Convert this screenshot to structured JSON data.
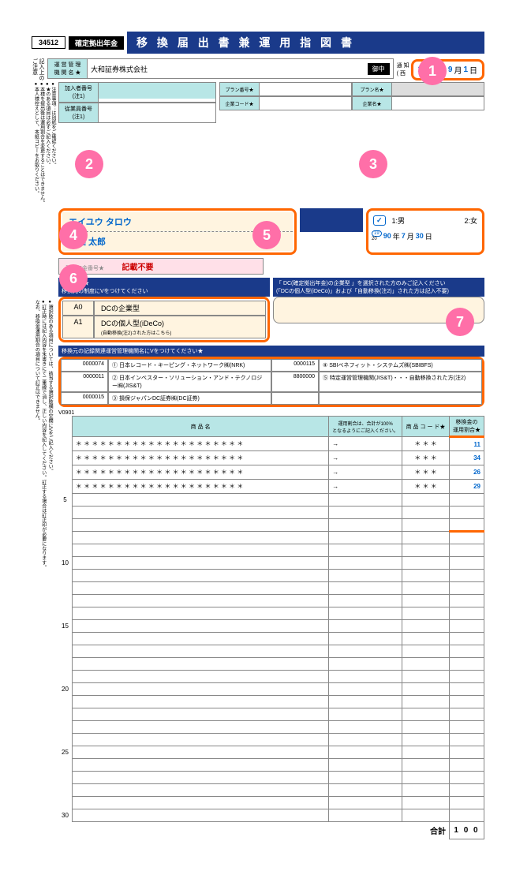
{
  "header": {
    "code": "34512",
    "type": "確定拠出年金",
    "title": "移 換 届 出 書 兼 運 用 指 図 書"
  },
  "date": {
    "label_left": "通 知",
    "label_right": "( 西",
    "era": "20",
    "year": "21",
    "year_unit": "年",
    "month": "9",
    "month_unit": "月",
    "day": "1",
    "day_unit": "日"
  },
  "notice": {
    "label": "記入上の\nご注意",
    "bullets": "●注意事項：は別紙をご確認ください。\n●★のある項目は必ずご記入ください。\n●本様を提出後は運用割合を変更することはできません。\n●本人様控えとして、本紙コピーをお取りください。"
  },
  "company": {
    "label": "運 営 管 理\n機 関 名 ★",
    "name": "大和証券株式会社",
    "suffix": "御中"
  },
  "member": {
    "label1": "加入者番号\n(注1)",
    "label2": "従業員番号\n(注1)"
  },
  "plan": {
    "label1": "プラン番号★",
    "label2": "プラン名★",
    "label3": "企業コード★",
    "label4": "企業名★"
  },
  "name": {
    "kana": "エイユウ タロウ",
    "kanji": "英雄 太郎"
  },
  "pension": {
    "label": "基礎年金番号★",
    "note": "記載不要"
  },
  "gender": {
    "label1": "1:男",
    "label2": "2:女",
    "check": "✓"
  },
  "birth": {
    "era1": "19",
    "era2": "20",
    "year": "90",
    "year_unit": "年",
    "month": "7",
    "month_unit": "月",
    "day": "30",
    "day_unit": "日"
  },
  "reason": {
    "header": "異動事由★\n移換元の制度にVをつけてください",
    "header2": "「 DC(確定拠出年金)の企業型 」を選択された方のみご記入ください\n(「DCの個人型(iDeCo)」および「自動移換(注2)」された方は記入不要)",
    "code1": "A0",
    "text1": "DCの企業型",
    "code2": "A1",
    "text2": "DCの個人型(iDeCo)",
    "text2_sub": "(自動移換(注2)された方はこちら)"
  },
  "records": {
    "header": "移換元の記録関連運営管理機関名にVをつけてください★",
    "items": [
      {
        "num": "0000074",
        "text": "① 日本レコード・キーピング・ネットワーク㈱(NRK)"
      },
      {
        "num": "0000011",
        "text": "② 日本インベスター・ソリューション・アンド・テクノロジー㈱(JIS&T)"
      },
      {
        "num": "0000015",
        "text": "③ 損保ジャパンDC証券㈱(DC証券)"
      },
      {
        "num": "0000115",
        "text": "④ SBIベネフィット・システムズ㈱(SBIBFS)"
      },
      {
        "num": "8800000",
        "text": "⑤ 特定運営管理機関(JIS&T)・・・自動移換された方(注2)"
      }
    ]
  },
  "products": {
    "col1": "商 品 名",
    "col2_note": "運用割合は、合計が100%\nとなるようにご記入ください。",
    "col2": "商 品 コ ー ド★",
    "col3": "移換金の\n運用割合★",
    "star_row": "＊ ＊ ＊ ＊ ＊ ＊ ＊ ＊ ＊ ＊ ＊ ＊ ＊ ＊ ＊ ＊ ＊ ＊ ＊ ＊ ＊",
    "star_code": "＊ ＊ ＊",
    "ratios": [
      "11",
      "34",
      "26",
      "29"
    ],
    "total_label": "合計",
    "total": "1 0 0",
    "version": "V0901"
  },
  "side_notes": "●選択肢のある項目については、該当する選択肢横の空欄にVをご記入ください。\n●訂正時には記入内容を朱書きにて二重線で消し、正しい内容を記入してください。訂正する場合は訂正印が必要になります。\nなお、移換金運用割合の項目について訂正はできません。",
  "callouts": {
    "c1": "1",
    "c2": "2",
    "c3": "3",
    "c4": "4",
    "c5": "5",
    "c6": "6",
    "c7": "7"
  },
  "colors": {
    "navy": "#1a3a8a",
    "teal": "#b8e6e6",
    "orange": "#ff6600",
    "pink": "#ff6fa8",
    "blue": "#0066cc",
    "yellow": "#fff4e0"
  }
}
